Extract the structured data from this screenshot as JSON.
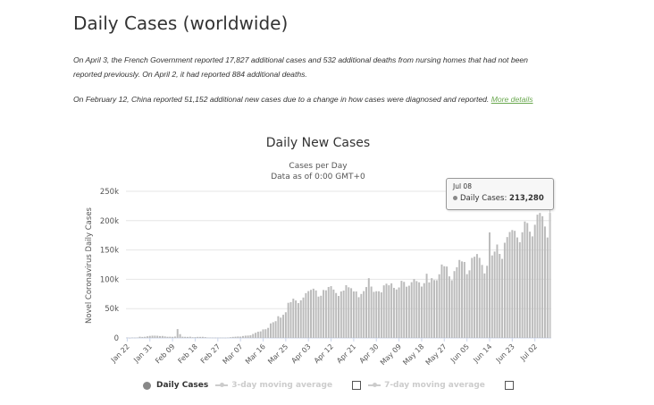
{
  "page": {
    "title": "Daily Cases (worldwide)",
    "note1": "On April 3, the French Government reported 17,827 additional cases and 532 additional deaths from nursing homes that had not been reported previously. On April 2, it had reported 884 additional deaths.",
    "note2": "On February 12, China reported 51,152 additional new cases due to a change in how cases were diagnosed and reported.",
    "more_details": "More details"
  },
  "chart_data": {
    "type": "bar",
    "title": "Daily New Cases",
    "subtitle1": "Cases per Day",
    "subtitle2": "Data as of 0:00 GMT+0",
    "ylabel": "Novel Coronavirus Daily Cases",
    "ylim": [
      0,
      250000
    ],
    "yticks": [
      0,
      50000,
      100000,
      150000,
      200000,
      250000
    ],
    "ytick_labels": [
      "0",
      "50k",
      "100k",
      "150k",
      "200k",
      "250k"
    ],
    "xtick_labels": [
      "Jan 22",
      "Jan 31",
      "Feb 09",
      "Feb 18",
      "Feb 27",
      "Mar 07",
      "Mar 16",
      "Mar 25",
      "Apr 03",
      "Apr 12",
      "Apr 21",
      "Apr 30",
      "May 09",
      "May 18",
      "May 27",
      "Jun 05",
      "Jun 14",
      "Jun 23",
      "Jul 02"
    ],
    "bar_color": "#bbbbbb",
    "values": [
      580,
      100,
      600,
      500,
      700,
      2100,
      1700,
      2000,
      2800,
      3500,
      3900,
      3900,
      3700,
      3200,
      3400,
      2600,
      2000,
      2100,
      1900,
      2400,
      15100,
      6500,
      2100,
      1900,
      1800,
      2100,
      1200,
      1300,
      1800,
      1800,
      1900,
      1400,
      700,
      600,
      500,
      450,
      450,
      500,
      500,
      400,
      650,
      1200,
      1800,
      2100,
      2500,
      2300,
      3300,
      3900,
      4100,
      4600,
      6800,
      8800,
      10600,
      11200,
      14600,
      14900,
      17200,
      24800,
      26800,
      28600,
      37100,
      34700,
      39500,
      43800,
      59900,
      61100,
      67000,
      63900,
      59400,
      64200,
      68900,
      76400,
      79900,
      82000,
      84000,
      81000,
      70500,
      72000,
      81800,
      81200,
      86900,
      88300,
      82500,
      76600,
      71600,
      79300,
      80800,
      90000,
      86400,
      84800,
      79300,
      79300,
      69500,
      75000,
      79900,
      86800,
      101900,
      87600,
      78600,
      79700,
      79600,
      77700,
      89700,
      92500,
      89800,
      93100,
      85400,
      82700,
      86100,
      97400,
      95600,
      87400,
      89100,
      95100,
      100400,
      96900,
      94800,
      87600,
      93400,
      109500,
      94700,
      101900,
      98600,
      98400,
      108600,
      125200,
      122300,
      121800,
      105000,
      98400,
      114000,
      120600,
      133000,
      130500,
      129600,
      108800,
      115300,
      136500,
      138500,
      143100,
      136600,
      124500,
      110000,
      123100,
      180000,
      140700,
      147300,
      159300,
      143300,
      134800,
      162300,
      172000,
      180600,
      184000,
      182600,
      171400,
      163300,
      180200,
      198500,
      196000,
      181200,
      173200,
      193000,
      210200,
      213100,
      207600,
      190000,
      171300,
      213280
    ],
    "highlight": {
      "date": "Jul 08",
      "series": "Daily Cases",
      "value_label": "213,280"
    }
  },
  "legend": {
    "daily": "Daily Cases",
    "ma3": "3-day moving average",
    "ma7": "7-day moving average"
  },
  "colors": {
    "bar": "#bbbbbb",
    "gridline": "#e6e6e6",
    "link": "#6aa84f"
  }
}
